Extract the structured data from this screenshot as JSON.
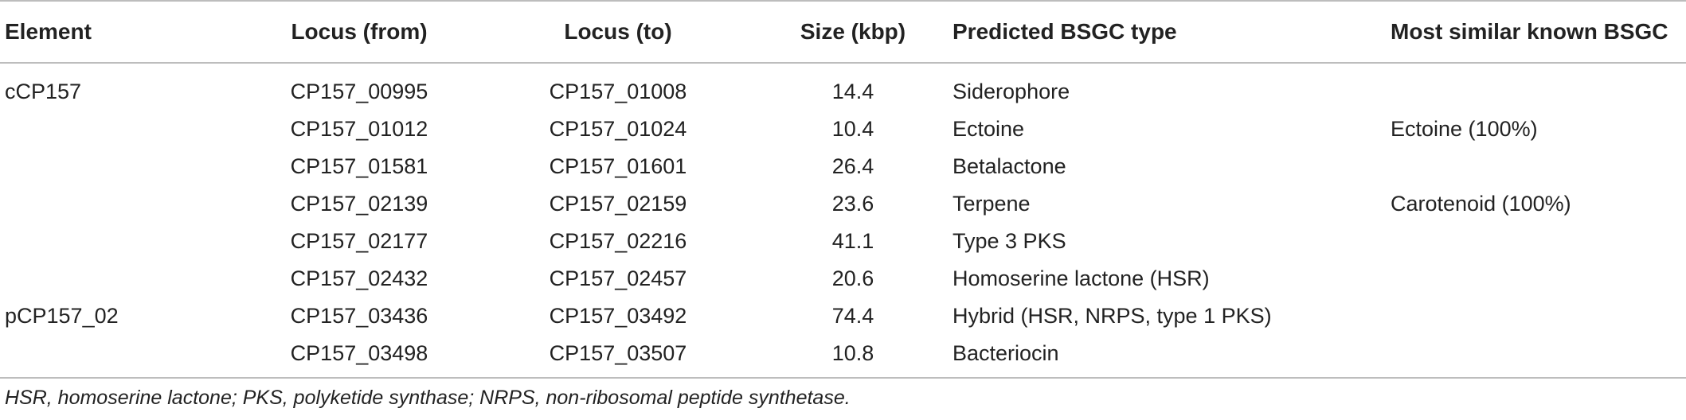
{
  "table": {
    "headers": {
      "element": "Element",
      "locus_from": "Locus (from)",
      "locus_to": "Locus (to)",
      "size": "Size (kbp)",
      "type": "Predicted BSGC type",
      "similar": "Most similar known BSGC"
    },
    "rows": [
      {
        "element": "cCP157",
        "locus_from": "CP157_00995",
        "locus_to": "CP157_01008",
        "size": "14.4",
        "type": "Siderophore",
        "similar": ""
      },
      {
        "element": "",
        "locus_from": "CP157_01012",
        "locus_to": "CP157_01024",
        "size": "10.4",
        "type": "Ectoine",
        "similar": "Ectoine (100%)"
      },
      {
        "element": "",
        "locus_from": "CP157_01581",
        "locus_to": "CP157_01601",
        "size": "26.4",
        "type": "Betalactone",
        "similar": ""
      },
      {
        "element": "",
        "locus_from": "CP157_02139",
        "locus_to": "CP157_02159",
        "size": "23.6",
        "type": "Terpene",
        "similar": "Carotenoid (100%)"
      },
      {
        "element": "",
        "locus_from": "CP157_02177",
        "locus_to": "CP157_02216",
        "size": "41.1",
        "type": "Type 3 PKS",
        "similar": ""
      },
      {
        "element": "",
        "locus_from": "CP157_02432",
        "locus_to": "CP157_02457",
        "size": "20.6",
        "type": "Homoserine lactone (HSR)",
        "similar": ""
      },
      {
        "element": "pCP157_02",
        "locus_from": "CP157_03436",
        "locus_to": "CP157_03492",
        "size": "74.4",
        "type": "Hybrid (HSR, NRPS, type 1 PKS)",
        "similar": ""
      },
      {
        "element": "",
        "locus_from": "CP157_03498",
        "locus_to": "CP157_03507",
        "size": "10.8",
        "type": "Bacteriocin",
        "similar": ""
      }
    ]
  },
  "footnote": "HSR, homoserine lactone; PKS, polyketide synthase; NRPS, non-ribosomal peptide synthetase."
}
